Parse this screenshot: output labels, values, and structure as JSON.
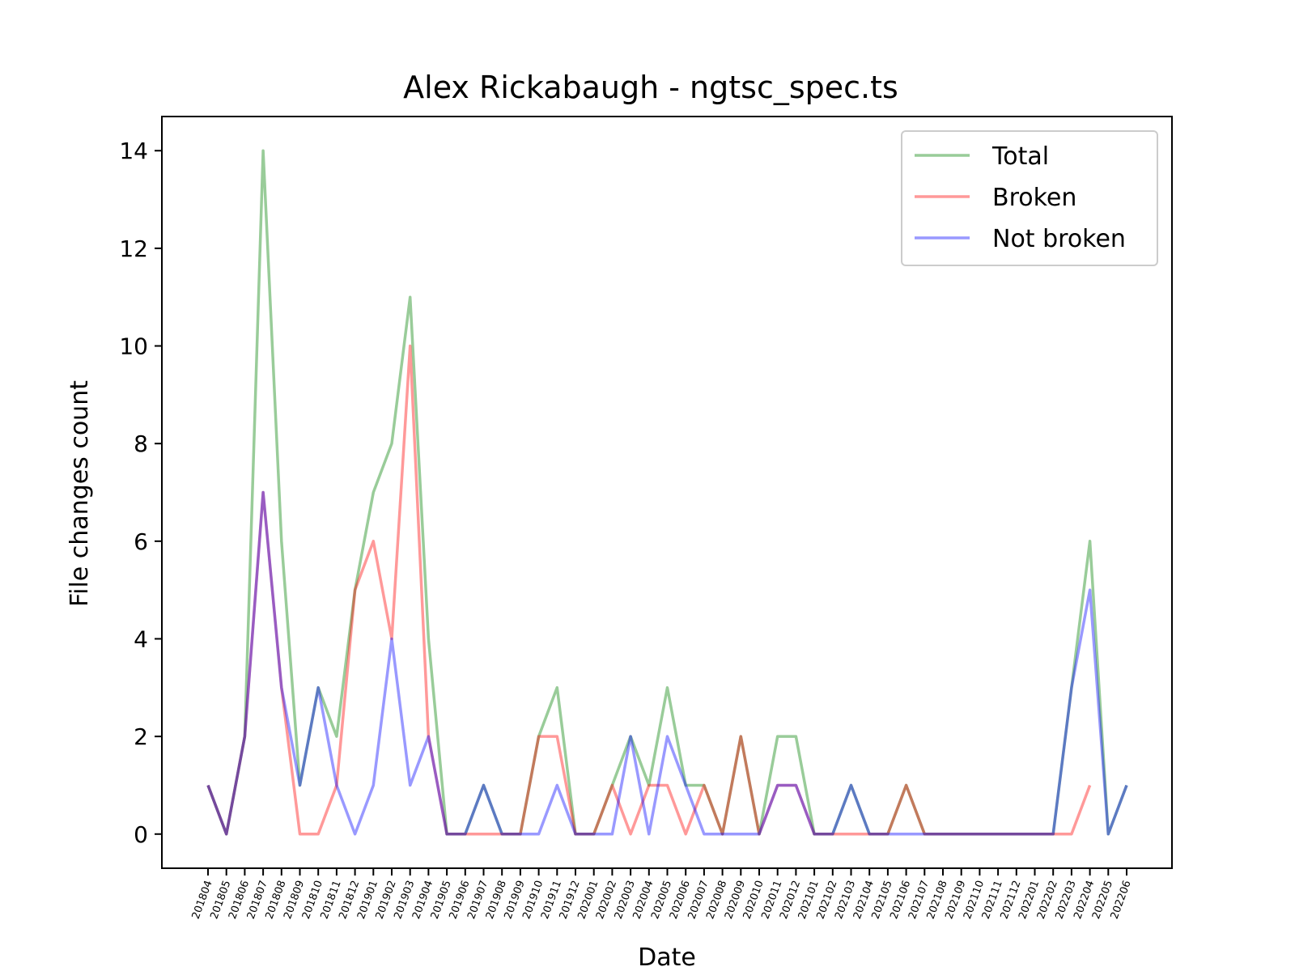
{
  "chart_data": {
    "type": "line",
    "title": "Alex Rickabaugh - ngtsc_spec.ts",
    "xlabel": "Date",
    "ylabel": "File changes count",
    "ylim": [
      -0.7,
      14.7
    ],
    "yticks": [
      0,
      2,
      4,
      6,
      8,
      10,
      12,
      14
    ],
    "legend_position": "top-right",
    "grid": false,
    "categories": [
      "201804",
      "201805",
      "201806",
      "201807",
      "201808",
      "201809",
      "201810",
      "201811",
      "201812",
      "201901",
      "201902",
      "201903",
      "201904",
      "201905",
      "201906",
      "201907",
      "201908",
      "201909",
      "201910",
      "201911",
      "201912",
      "202001",
      "202002",
      "202003",
      "202004",
      "202005",
      "202006",
      "202007",
      "202008",
      "202009",
      "202010",
      "202011",
      "202012",
      "202101",
      "202102",
      "202103",
      "202104",
      "202105",
      "202106",
      "202107",
      "202108",
      "202109",
      "202110",
      "202111",
      "202112",
      "202201",
      "202202",
      "202203",
      "202204",
      "202205",
      "202206"
    ],
    "series": [
      {
        "name": "Total",
        "color": "#008000",
        "values": [
          1,
          0,
          2,
          14,
          6,
          1,
          3,
          2,
          5,
          7,
          8,
          11,
          4,
          0,
          0,
          1,
          0,
          0,
          2,
          3,
          0,
          0,
          1,
          2,
          1,
          3,
          1,
          1,
          0,
          2,
          0,
          2,
          2,
          0,
          0,
          1,
          0,
          0,
          1,
          0,
          0,
          0,
          0,
          0,
          0,
          0,
          0,
          3,
          6,
          0,
          1
        ]
      },
      {
        "name": "Broken",
        "color": "#ff0000",
        "values": [
          1,
          0,
          2,
          7,
          3,
          0,
          0,
          1,
          5,
          6,
          4,
          10,
          2,
          0,
          0,
          0,
          0,
          0,
          2,
          2,
          0,
          0,
          1,
          0,
          1,
          1,
          0,
          1,
          0,
          2,
          0,
          1,
          1,
          0,
          0,
          0,
          0,
          0,
          1,
          0,
          0,
          0,
          0,
          0,
          0,
          0,
          0,
          0,
          1,
          null,
          null
        ]
      },
      {
        "name": "Not broken",
        "color": "#0000ff",
        "values": [
          1,
          0,
          2,
          7,
          3,
          1,
          3,
          1,
          0,
          1,
          4,
          1,
          2,
          0,
          0,
          1,
          0,
          0,
          0,
          1,
          0,
          0,
          0,
          2,
          0,
          2,
          1,
          0,
          0,
          0,
          0,
          1,
          1,
          0,
          0,
          1,
          0,
          0,
          0,
          0,
          0,
          0,
          0,
          0,
          0,
          0,
          0,
          3,
          5,
          0,
          1
        ]
      }
    ]
  }
}
